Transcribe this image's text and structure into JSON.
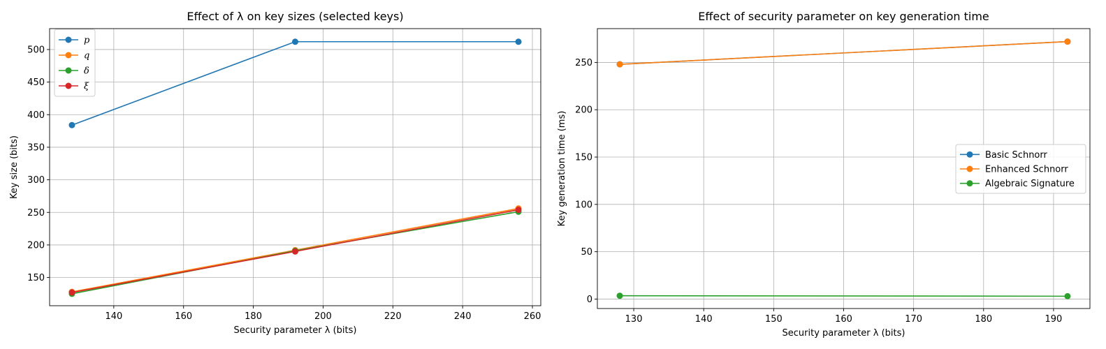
{
  "chart_data": [
    {
      "type": "line",
      "title": "Effect of λ on key sizes (selected keys)",
      "xlabel": "Security parameter λ (bits)",
      "ylabel": "Key size (bits)",
      "x": [
        128,
        192,
        256
      ],
      "xlim": [
        121.6,
        262.4
      ],
      "ylim": [
        106.7,
        532.1
      ],
      "xticks": [
        140,
        160,
        180,
        200,
        220,
        240,
        260
      ],
      "yticks": [
        150,
        200,
        250,
        300,
        350,
        400,
        450,
        500
      ],
      "grid": true,
      "legend": "top-left",
      "series": [
        {
          "name": "p",
          "color": "#1f77b4",
          "values": [
            384,
            512,
            512
          ]
        },
        {
          "name": "q",
          "color": "#ff7f0e",
          "values": [
            128,
            192,
            256
          ]
        },
        {
          "name": "δ",
          "color": "#2ca02c",
          "values": [
            125,
            191,
            251
          ]
        },
        {
          "name": "ξ",
          "color": "#d62728",
          "values": [
            127,
            190,
            254
          ]
        }
      ]
    },
    {
      "type": "line",
      "title": "Effect of security parameter on key generation time",
      "xlabel": "Security parameter λ (bits)",
      "ylabel": "Key generation time (ms)",
      "x": [
        128,
        192
      ],
      "xlim": [
        124.8,
        195.2
      ],
      "ylim": [
        -10,
        285.7
      ],
      "xticks": [
        130,
        140,
        150,
        160,
        170,
        180,
        190
      ],
      "yticks": [
        0,
        50,
        100,
        150,
        200,
        250
      ],
      "grid": true,
      "legend": "center-right",
      "series": [
        {
          "name": "Basic Schnorr",
          "color": "#1f77b4",
          "values": [
            248,
            272
          ]
        },
        {
          "name": "Enhanced Schnorr",
          "color": "#ff7f0e",
          "values": [
            248,
            272
          ]
        },
        {
          "name": "Algebraic Signature",
          "color": "#2ca02c",
          "values": [
            3.5,
            3.0
          ]
        }
      ]
    }
  ]
}
